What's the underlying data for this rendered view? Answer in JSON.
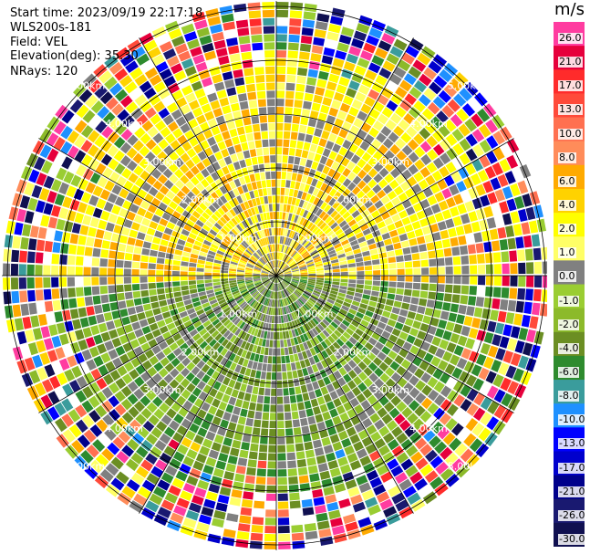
{
  "header": {
    "start_time": "Start time: 2023/09/19 22:17:18",
    "instrument": "WLS200s-181",
    "field": "Field: VEL",
    "elevation": "Elevation(deg): 35.30",
    "nrays": "NRays: 120"
  },
  "colorbar": {
    "unit": "m/s",
    "levels": [
      {
        "label": "26.0",
        "color": "#ff3ca0"
      },
      {
        "label": "21.0",
        "color": "#e6003c"
      },
      {
        "label": "17.0",
        "color": "#ff2b2b"
      },
      {
        "label": "13.0",
        "color": "#ff4a3a"
      },
      {
        "label": "10.0",
        "color": "#ff7050"
      },
      {
        "label": "8.0",
        "color": "#ff8c5a"
      },
      {
        "label": "6.0",
        "color": "#ffaa00"
      },
      {
        "label": "4.0",
        "color": "#ffd200"
      },
      {
        "label": "2.0",
        "color": "#ffff00"
      },
      {
        "label": "1.0",
        "color": "#ffff66"
      },
      {
        "label": "0.0",
        "color": "#808080"
      },
      {
        "label": "-1.0",
        "color": "#9acd32"
      },
      {
        "label": "-2.0",
        "color": "#8cba2a"
      },
      {
        "label": "-4.0",
        "color": "#6b8e23"
      },
      {
        "label": "-6.0",
        "color": "#2e8b2e"
      },
      {
        "label": "-8.0",
        "color": "#3a9c9c"
      },
      {
        "label": "-10.0",
        "color": "#1e90ff"
      },
      {
        "label": "-13.0",
        "color": "#0000ff"
      },
      {
        "label": "-17.0",
        "color": "#0000cd"
      },
      {
        "label": "-21.0",
        "color": "#00008b"
      },
      {
        "label": "-26.0",
        "color": "#191970"
      },
      {
        "label": "-30.0",
        "color": "#101050"
      }
    ]
  },
  "chart_data": {
    "type": "heatmap",
    "subtype": "radar PPI (velocity field)",
    "field": "VEL",
    "units": "m/s",
    "n_rays": 120,
    "elevation_deg": 35.3,
    "range_rings_km": [
      1.0,
      2.0,
      3.0,
      4.0,
      5.0
    ],
    "ring_labels": [
      "1.00km",
      "2.00km",
      "3.00km",
      "4.00km",
      "5.00km"
    ],
    "azimuth_lines_deg": [
      0,
      30,
      60,
      90,
      120,
      150,
      180,
      210,
      240,
      270,
      300,
      330
    ],
    "color_range": [
      -30.0,
      26.0
    ],
    "pattern_summary": {
      "north_half_inner": "positive velocity ~1 to 4 m/s (yellow/orange)",
      "south_half_inner": "negative velocity ~-2 to -6 m/s (green)",
      "outer_ranges": "noisy values spanning full color range"
    }
  }
}
